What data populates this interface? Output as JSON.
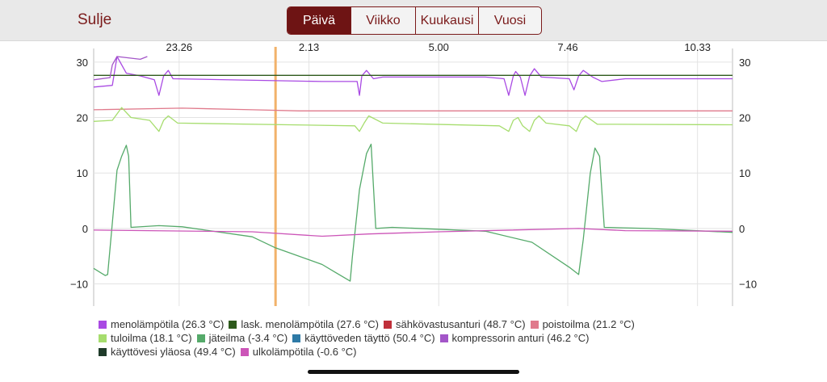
{
  "header": {
    "close_label": "Sulje",
    "tabs": [
      {
        "label": "Päivä",
        "active": true
      },
      {
        "label": "Viikko",
        "active": false
      },
      {
        "label": "Kuukausi",
        "active": false
      },
      {
        "label": "Vuosi",
        "active": false
      }
    ]
  },
  "chart_data": {
    "type": "line",
    "time_ticks": [
      "23.26",
      "2.13",
      "5.00",
      "7.46",
      "10.33"
    ],
    "x_range_hours": [
      21.6,
      11.3
    ],
    "x_tick_hours": [
      23.433,
      2.217,
      5.0,
      7.767,
      10.55
    ],
    "cursor_hour": 1.5,
    "y_range": [
      -14,
      31
    ],
    "y_ticks": [
      30,
      20,
      10,
      0,
      -10
    ],
    "grid": true,
    "legend_position": "bottom",
    "series": [
      {
        "name": "menolämpötila (26.3 °C)",
        "color": "#a94ae3",
        "points": [
          [
            21.6,
            25.5
          ],
          [
            22.0,
            25.8
          ],
          [
            22.1,
            31
          ],
          [
            22.3,
            28
          ],
          [
            22.6,
            27.5
          ],
          [
            22.9,
            26.8
          ],
          [
            23.0,
            24
          ],
          [
            23.1,
            27.5
          ],
          [
            23.2,
            28.5
          ],
          [
            23.3,
            27
          ],
          [
            2.5,
            26.5
          ],
          [
            3.25,
            26.5
          ],
          [
            3.3,
            24
          ],
          [
            3.35,
            27.5
          ],
          [
            3.45,
            28.5
          ],
          [
            3.6,
            27.0
          ],
          [
            3.8,
            27.3
          ],
          [
            6.0,
            27.3
          ],
          [
            6.4,
            27.0
          ],
          [
            6.5,
            24
          ],
          [
            6.6,
            27.5
          ],
          [
            6.65,
            28.3
          ],
          [
            6.75,
            27.3
          ],
          [
            6.85,
            24
          ],
          [
            6.95,
            27.5
          ],
          [
            7.05,
            28.8
          ],
          [
            7.2,
            27.3
          ],
          [
            7.8,
            27.0
          ],
          [
            7.9,
            25
          ],
          [
            8.0,
            27.5
          ],
          [
            8.1,
            28.5
          ],
          [
            8.3,
            27.3
          ],
          [
            8.5,
            26.5
          ],
          [
            9.0,
            27.0
          ],
          [
            11.3,
            27.0
          ]
        ]
      },
      {
        "name": "lask. menolämpötila (27.6 °C)",
        "color": "#2e5a1c",
        "points": [
          [
            21.6,
            27.6
          ],
          [
            11.3,
            27.6
          ]
        ]
      },
      {
        "name": "sähkövastusanturi (48.7 °C)",
        "color": "#c0303a",
        "points": []
      },
      {
        "name": "poistoilma (21.2 °C)",
        "color": "#e07a8c",
        "points": [
          [
            21.6,
            21.4
          ],
          [
            23.5,
            21.7
          ],
          [
            1.0,
            21.4
          ],
          [
            2.0,
            21.2
          ],
          [
            11.3,
            21.2
          ]
        ]
      },
      {
        "name": "tuloilma (18.1 °C)",
        "color": "#a6dd6e",
        "points": [
          [
            21.6,
            19.3
          ],
          [
            22.0,
            19.5
          ],
          [
            22.2,
            21.8
          ],
          [
            22.4,
            20.0
          ],
          [
            22.8,
            19.5
          ],
          [
            23.0,
            17.5
          ],
          [
            23.1,
            19.5
          ],
          [
            23.2,
            20.3
          ],
          [
            23.4,
            19.0
          ],
          [
            3.2,
            18.5
          ],
          [
            3.3,
            17.5
          ],
          [
            3.4,
            19.0
          ],
          [
            3.5,
            20.3
          ],
          [
            3.8,
            19.0
          ],
          [
            6.3,
            18.5
          ],
          [
            6.5,
            17.5
          ],
          [
            6.6,
            19.5
          ],
          [
            6.7,
            20.0
          ],
          [
            6.8,
            18.5
          ],
          [
            6.95,
            17.5
          ],
          [
            7.05,
            19.5
          ],
          [
            7.15,
            20.3
          ],
          [
            7.3,
            19.0
          ],
          [
            7.8,
            18.5
          ],
          [
            7.95,
            17.5
          ],
          [
            8.05,
            19.5
          ],
          [
            8.15,
            20.3
          ],
          [
            8.4,
            18.8
          ],
          [
            11.3,
            18.7
          ]
        ]
      },
      {
        "name": "jäteilma (-3.4 °C)",
        "color": "#55aa6a",
        "points": [
          [
            21.6,
            -7.2
          ],
          [
            21.85,
            -8.5
          ],
          [
            21.9,
            -8.3
          ],
          [
            22.0,
            1.0
          ],
          [
            22.1,
            10.5
          ],
          [
            22.2,
            13.0
          ],
          [
            22.3,
            15.0
          ],
          [
            22.35,
            13.0
          ],
          [
            22.4,
            0.2
          ],
          [
            23.0,
            0.5
          ],
          [
            23.5,
            0.3
          ],
          [
            1.0,
            -1.5
          ],
          [
            1.5,
            -3.5
          ],
          [
            2.5,
            -6.5
          ],
          [
            2.8,
            -8.0
          ],
          [
            3.1,
            -9.5
          ],
          [
            3.15,
            -5.0
          ],
          [
            3.3,
            7.0
          ],
          [
            3.45,
            13.5
          ],
          [
            3.55,
            15.2
          ],
          [
            3.65,
            0.0
          ],
          [
            4.0,
            0.2
          ],
          [
            6.0,
            -0.5
          ],
          [
            7.0,
            -2.5
          ],
          [
            7.8,
            -7.0
          ],
          [
            8.0,
            -8.3
          ],
          [
            8.1,
            -2.0
          ],
          [
            8.25,
            10.0
          ],
          [
            8.35,
            14.5
          ],
          [
            8.45,
            13.0
          ],
          [
            8.55,
            0.2
          ],
          [
            9.5,
            0.0
          ],
          [
            11.3,
            -0.7
          ]
        ]
      },
      {
        "name": "käyttöveden täyttö (50.4 °C)",
        "color": "#2e7aa6",
        "points": []
      },
      {
        "name": "kompressorin anturi (46.2 °C)",
        "color": "#a356c8",
        "points": [
          [
            21.6,
            26.8
          ],
          [
            21.95,
            27.2
          ],
          [
            22.0,
            29.5
          ],
          [
            22.1,
            31
          ],
          [
            22.6,
            30.5
          ],
          [
            22.75,
            31
          ]
        ]
      },
      {
        "name": "käyttövesi yläosa (49.4 °C)",
        "color": "#1f3b2a",
        "points": []
      },
      {
        "name": "ulkolämpötila (-0.6 °C)",
        "color": "#cc55b8",
        "points": [
          [
            21.6,
            -0.3
          ],
          [
            1.0,
            -0.6
          ],
          [
            2.5,
            -1.4
          ],
          [
            3.5,
            -1.0
          ],
          [
            5.0,
            -0.6
          ],
          [
            8.0,
            0.0
          ],
          [
            9.0,
            -0.4
          ],
          [
            11.3,
            -0.5
          ]
        ]
      }
    ]
  }
}
